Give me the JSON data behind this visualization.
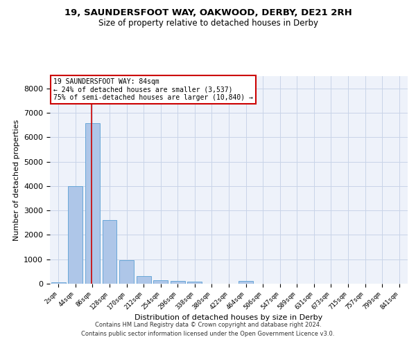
{
  "title": "19, SAUNDERSFOOT WAY, OAKWOOD, DERBY, DE21 2RH",
  "subtitle": "Size of property relative to detached houses in Derby",
  "xlabel": "Distribution of detached houses by size in Derby",
  "ylabel": "Number of detached properties",
  "bin_labels": [
    "2sqm",
    "44sqm",
    "86sqm",
    "128sqm",
    "170sqm",
    "212sqm",
    "254sqm",
    "296sqm",
    "338sqm",
    "380sqm",
    "422sqm",
    "464sqm",
    "506sqm",
    "547sqm",
    "589sqm",
    "631sqm",
    "673sqm",
    "715sqm",
    "757sqm",
    "799sqm",
    "841sqm"
  ],
  "bar_heights": [
    60,
    4000,
    6560,
    2600,
    970,
    315,
    130,
    100,
    80,
    0,
    0,
    100,
    0,
    0,
    0,
    0,
    0,
    0,
    0,
    0,
    0
  ],
  "bar_color": "#aec6e8",
  "bar_edgecolor": "#5a9fd4",
  "ylim": [
    0,
    8500
  ],
  "yticks": [
    0,
    1000,
    2000,
    3000,
    4000,
    5000,
    6000,
    7000,
    8000
  ],
  "property_bin_index": 1.95,
  "vline_color": "#cc0000",
  "annotation_text": "19 SAUNDERSFOOT WAY: 84sqm\n← 24% of detached houses are smaller (3,537)\n75% of semi-detached houses are larger (10,840) →",
  "annotation_box_color": "#cc0000",
  "bg_color": "#eef2fa",
  "grid_color": "#c8d4e8",
  "footer_line1": "Contains HM Land Registry data © Crown copyright and database right 2024.",
  "footer_line2": "Contains public sector information licensed under the Open Government Licence v3.0."
}
